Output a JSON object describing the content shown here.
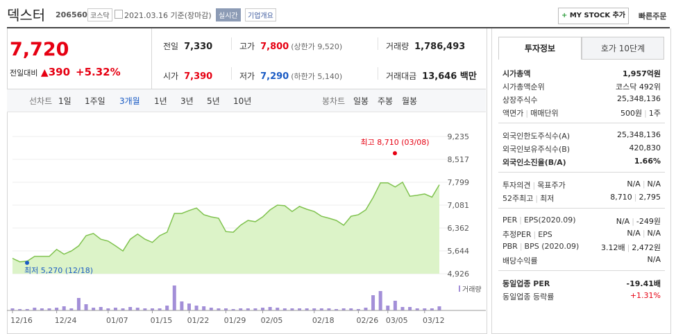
{
  "header": {
    "name": "덱스터",
    "code": "206560",
    "market": "코스닥",
    "date": "2021.03.16 기준(장마감)",
    "realtime": "실시간",
    "overview": "기업개요",
    "my_stock": "MY STOCK 추가",
    "quick_order": "빠른주문"
  },
  "price": {
    "current": "7,720",
    "change_label": "전일대비",
    "change": "390",
    "rate": "+5.32%"
  },
  "stats": [
    {
      "label": "전일",
      "value": "7,330"
    },
    {
      "label": "고가",
      "value": "7,800",
      "sub": "(상한가 9,520)"
    },
    {
      "label": "거래량",
      "value": "1,786,493"
    },
    {
      "label": "시가",
      "value": "7,390"
    },
    {
      "label": "저가",
      "value": "7,290",
      "sub": "(하한가 5,140)"
    },
    {
      "label": "거래대금",
      "value": "13,646 백만"
    }
  ],
  "chart_tabs": {
    "line_label": "선차트",
    "line_periods": [
      "1일",
      "1주일",
      "3개월",
      "1년",
      "3년",
      "5년",
      "10년"
    ],
    "candle_label": "봉차트",
    "candle_periods": [
      "일봉",
      "주봉",
      "월봉"
    ]
  },
  "chart_data": {
    "type": "area",
    "categories": [
      "12/16",
      null,
      null,
      null,
      null,
      null,
      "12/24",
      null,
      null,
      null,
      null,
      null,
      null,
      "01/07",
      null,
      null,
      null,
      null,
      null,
      "01/15",
      null,
      null,
      null,
      null,
      "01/22",
      null,
      null,
      null,
      null,
      "01/29",
      null,
      null,
      null,
      null,
      "02/05",
      null,
      null,
      null,
      null,
      null,
      null,
      "02/18",
      null,
      null,
      null,
      null,
      null,
      "02/26",
      null,
      null,
      null,
      "03/05",
      null,
      null,
      null,
      null,
      "03/12",
      null,
      null
    ],
    "values": [
      5410,
      5300,
      5320,
      5470,
      5470,
      5470,
      5690,
      5540,
      5640,
      5800,
      6120,
      6190,
      6010,
      5950,
      5800,
      5640,
      6010,
      6170,
      6010,
      5910,
      6120,
      6230,
      6820,
      6820,
      6910,
      6990,
      6780,
      6710,
      6670,
      6250,
      6230,
      6450,
      6600,
      6560,
      6710,
      6930,
      7080,
      7060,
      6880,
      7040,
      6950,
      6880,
      6730,
      6670,
      6600,
      6450,
      6730,
      6780,
      6930,
      7320,
      7780,
      7780,
      7650,
      7800,
      7360,
      7390,
      7430,
      7330,
      7720
    ],
    "color": "#7fc24e",
    "fill": "#dcf3c8",
    "ylim": [
      4926,
      9235
    ],
    "yticks": [
      {
        "value": 9235,
        "label": "9,235"
      },
      {
        "value": 8517,
        "label": "8,517"
      },
      {
        "value": 7799,
        "label": "7,799"
      },
      {
        "value": 7081,
        "label": "7,081"
      },
      {
        "value": 6362,
        "label": "6,362"
      },
      {
        "value": 5644,
        "label": "5,644"
      },
      {
        "value": 4926,
        "label": "4,926"
      }
    ],
    "grid": true,
    "annotations": [
      {
        "text": "최고 8,710 (03/08)",
        "value": 8710,
        "color": "#e60012"
      },
      {
        "text": "최저 5,270 (12/18)",
        "value": 5270,
        "color": "#1a5bc4"
      }
    ],
    "volume": {
      "name": "거래량",
      "color": "#a38fd8",
      "ylim": [
        0,
        12000000
      ],
      "values": [
        900000,
        600000,
        600000,
        1200000,
        900000,
        900000,
        1200000,
        1800000,
        900000,
        5400000,
        2700000,
        1200000,
        1500000,
        900000,
        1200000,
        900000,
        1500000,
        1200000,
        900000,
        900000,
        900000,
        2100000,
        10800000,
        3900000,
        3000000,
        2100000,
        1800000,
        1200000,
        900000,
        900000,
        600000,
        900000,
        900000,
        900000,
        1200000,
        1500000,
        1200000,
        900000,
        900000,
        900000,
        900000,
        900000,
        900000,
        900000,
        600000,
        900000,
        900000,
        600000,
        1200000,
        6600000,
        8400000,
        2100000,
        4200000,
        1500000,
        1500000,
        900000,
        900000,
        900000,
        1786493
      ]
    }
  },
  "info": {
    "tabs": [
      "투자정보",
      "호가 10단계"
    ],
    "groups": [
      [
        {
          "label": [
            "시가총액"
          ],
          "value": [
            "1,957억원"
          ]
        },
        {
          "label": [
            "시가총액순위"
          ],
          "value": [
            "코스닥 492위"
          ]
        },
        {
          "label": [
            "상장주식수"
          ],
          "value": [
            "25,348,136"
          ]
        },
        {
          "label": [
            "액면가",
            "매매단위"
          ],
          "value": [
            "500원",
            "1주"
          ]
        }
      ],
      [
        {
          "label": [
            "외국인한도주식수(A)"
          ],
          "value": [
            "25,348,136"
          ]
        },
        {
          "label": [
            "외국인보유주식수(B)"
          ],
          "value": [
            "420,830"
          ]
        },
        {
          "label": [
            "외국인소진율(B/A)"
          ],
          "value": [
            "1.66%"
          ]
        }
      ],
      [
        {
          "label": [
            "투자의견",
            "목표주가"
          ],
          "value": [
            "N/A",
            "N/A"
          ]
        },
        {
          "label": [
            "52주최고",
            "최저"
          ],
          "value": [
            "8,710",
            "2,795"
          ]
        }
      ],
      [
        {
          "label": [
            "PER",
            "EPS(2020.09)"
          ],
          "value": [
            "N/A",
            "-249원"
          ]
        },
        {
          "label": [
            "추정PER",
            "EPS"
          ],
          "value": [
            "N/A",
            "N/A"
          ]
        },
        {
          "label": [
            "PBR",
            "BPS (2020.09)"
          ],
          "value": [
            "3.12배",
            "2,472원"
          ]
        },
        {
          "label": [
            "배당수익률"
          ],
          "value": [
            "N/A"
          ]
        }
      ],
      [
        {
          "label": [
            "동일업종 PER"
          ],
          "value": [
            "-19.41배"
          ]
        },
        {
          "label": [
            "동일업종 등락률"
          ],
          "value": [
            "+1.31%"
          ]
        }
      ]
    ]
  }
}
